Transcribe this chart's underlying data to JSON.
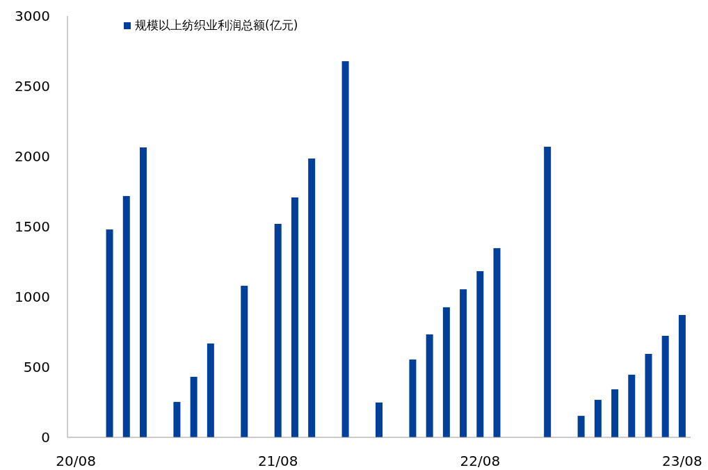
{
  "chart_data": {
    "type": "bar",
    "categories": [
      "20/08",
      null,
      null,
      null,
      null,
      null,
      null,
      null,
      null,
      null,
      null,
      null,
      "21/08",
      null,
      null,
      null,
      null,
      null,
      null,
      null,
      null,
      null,
      null,
      null,
      "22/08",
      null,
      null,
      null,
      null,
      null,
      null,
      null,
      null,
      null,
      null,
      null,
      "23/08"
    ],
    "series": [
      {
        "name": "规模以上纺织业利润总额(亿元)",
        "color": "#003f9a",
        "values": [
          null,
          null,
          1480,
          1718,
          2064,
          null,
          252,
          431,
          668,
          null,
          1079,
          null,
          1520,
          1708,
          1985,
          null,
          2678,
          null,
          248,
          null,
          554,
          733,
          926,
          1054,
          1183,
          1347,
          null,
          null,
          2069,
          null,
          153,
          267,
          342,
          446,
          594,
          723,
          871
        ]
      }
    ],
    "ylim": [
      0,
      3000
    ],
    "yticks": [
      0,
      500,
      1000,
      1500,
      2000,
      2500,
      3000
    ],
    "grid": false,
    "legend": "top left"
  }
}
